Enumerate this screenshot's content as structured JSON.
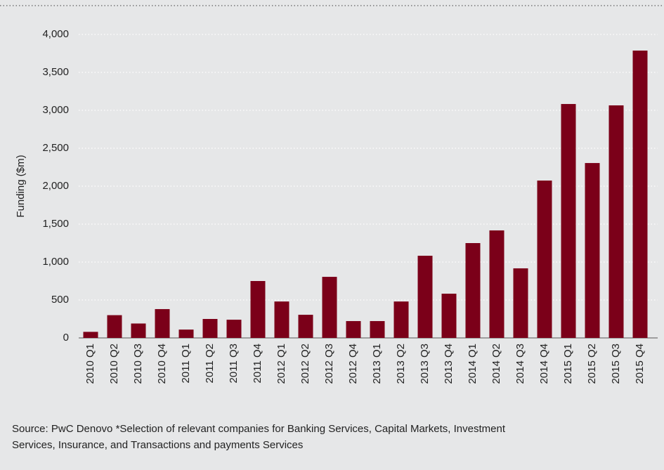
{
  "chart_data": {
    "type": "bar",
    "y_label": "Funding ($m)",
    "categories": [
      "2010 Q1",
      "2010 Q2",
      "2010 Q3",
      "2010 Q4",
      "2011 Q1",
      "2011 Q2",
      "2011 Q3",
      "2011 Q4",
      "2012 Q1",
      "2012 Q2",
      "2012 Q3",
      "2012 Q4",
      "2013 Q1",
      "2013 Q2",
      "2013 Q3",
      "2013 Q4",
      "2014 Q1",
      "2014 Q2",
      "2014 Q3",
      "2014 Q4",
      "2015 Q1",
      "2015 Q2",
      "2015 Q3",
      "2015 Q4"
    ],
    "values": [
      80,
      300,
      190,
      380,
      110,
      250,
      240,
      750,
      480,
      305,
      805,
      222,
      222,
      480,
      1083,
      583,
      1250,
      1417,
      917,
      2074,
      3083,
      2305,
      3065,
      3787
    ],
    "color": "#7b0019",
    "ylim": [
      0,
      4000
    ],
    "yticks": [
      0,
      500,
      {
        "value": 1000,
        "label": "1,000"
      },
      {
        "value": 1500,
        "label": "1,500"
      },
      {
        "value": 2000,
        "label": "2,000"
      },
      {
        "value": 2500,
        "label": "2,500"
      },
      {
        "value": 3000,
        "label": "3,000"
      },
      {
        "value": 3500,
        "label": "3,500"
      },
      {
        "value": 4000,
        "label": "4,000"
      }
    ],
    "grid": true,
    "source": [
      "Source: PwC Denovo *Selection of relevant companies for Banking Services, Capital Markets, Investment",
      "Services, Insurance, and Transactions and payments Services"
    ]
  }
}
